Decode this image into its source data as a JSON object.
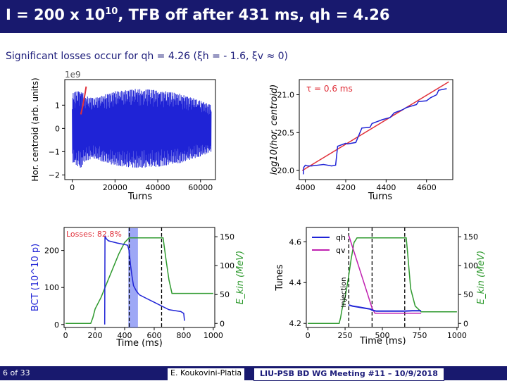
{
  "slide": {
    "title_pre": "I = 200 x 10",
    "title_sup": "10",
    "title_post": ", TFB off after 431 ms, qh = 4.26",
    "subtitle": "Significant losses occur for qh = 4.26 (ξh = - 1.6, ξv ≈ 0)",
    "time_label": "Time (ms)"
  },
  "footer": {
    "page": "6 of 33",
    "author": "E. Koukovini-Platia",
    "meeting": "LIU-PSB BD WG Meeting #11 – 10/9/2018"
  },
  "colors": {
    "blue": "#1f23d6",
    "red": "#e0303a",
    "green": "#2f9a2f",
    "magenta": "#c020b0",
    "band": "#5e6ef0",
    "navy": "#18196e"
  },
  "chart_data": [
    {
      "id": "turns",
      "type": "line",
      "xlabel": "Turns",
      "ylabel": "Hor. centroid (arb. units)",
      "offset_label": "1e9",
      "xlim": [
        -3500,
        67000
      ],
      "ylim": [
        -2.2,
        2.1
      ],
      "xticks": [
        0,
        20000,
        40000,
        60000
      ],
      "xtick_labels": [
        "0",
        "20000",
        "40000",
        "60000"
      ],
      "yticks": [
        -2,
        -1,
        0,
        1
      ],
      "ytick_labels": [
        "−2",
        "−1",
        "0",
        "1"
      ],
      "series": [
        {
          "color": "#1f23d6",
          "envelope": {
            "x": [
              0,
              2000,
              4000,
              6000,
              10000,
              20000,
              30000,
              40000,
              50000,
              60000,
              65000
            ],
            "amp": [
              1.5,
              1.6,
              1.7,
              1.4,
              1.3,
              1.6,
              1.7,
              1.65,
              1.5,
              1.2,
              1.0
            ]
          }
        },
        {
          "color": "#e0303a",
          "x": [
            4000,
            4500,
            5000,
            5500,
            6000,
            6500
          ],
          "y": [
            0.6,
            0.8,
            1.0,
            1.25,
            1.5,
            1.8
          ]
        }
      ]
    },
    {
      "id": "logfit",
      "type": "line",
      "xlabel": "Turns",
      "ylabel": "log10(hor. centroid)",
      "xlim": [
        3970,
        4730
      ],
      "ylim": [
        19.88,
        21.2
      ],
      "xticks": [
        4000,
        4200,
        4400,
        4600
      ],
      "xtick_labels": [
        "4000",
        "4200",
        "4400",
        "4600"
      ],
      "yticks": [
        20.0,
        20.5,
        21.0
      ],
      "ytick_labels": [
        "20.0",
        "20.5",
        "21.0"
      ],
      "annotation": "τ = 0.6 ms",
      "series": [
        {
          "color": "#1f23d6",
          "x": [
            3990,
            3992,
            4000,
            4010,
            4030,
            4060,
            4090,
            4130,
            4150,
            4160,
            4200,
            4210,
            4250,
            4280,
            4320,
            4330,
            4360,
            4380,
            4420,
            4440,
            4480,
            4500,
            4550,
            4560,
            4600,
            4620,
            4650,
            4660,
            4700
          ],
          "y": [
            19.95,
            20.04,
            20.07,
            20.06,
            20.06,
            20.07,
            20.08,
            20.06,
            20.07,
            20.32,
            20.36,
            20.35,
            20.37,
            20.56,
            20.57,
            20.62,
            20.65,
            20.67,
            20.7,
            20.76,
            20.8,
            20.83,
            20.87,
            20.91,
            20.92,
            20.96,
            21.0,
            21.06,
            21.08
          ]
        },
        {
          "color": "#e0303a",
          "x": [
            3985,
            4710
          ],
          "y": [
            20.0,
            21.17
          ]
        }
      ]
    },
    {
      "id": "bct",
      "type": "line",
      "xlabel": "Time (ms)",
      "ylabel": "BCT (10^10 p)",
      "y2label": "E_kin (MeV)",
      "xlim": [
        -10,
        1010
      ],
      "ylim": [
        -8,
        262
      ],
      "y2lim": [
        -7,
        166
      ],
      "xticks": [
        0,
        200,
        400,
        600,
        800,
        1000
      ],
      "xtick_labels": [
        "0",
        "200",
        "400",
        "600",
        "800",
        "1000"
      ],
      "yticks": [
        0,
        100,
        200
      ],
      "ytick_labels": [
        "0",
        "100",
        "200"
      ],
      "y2ticks": [
        0,
        50,
        100,
        150
      ],
      "y2tick_labels": [
        "0",
        "50",
        "100",
        "150"
      ],
      "annotation": "Losses: 82.8%",
      "band": [
        425,
        490
      ],
      "vlines": [
        431,
        650
      ],
      "series": [
        {
          "name": "BCT",
          "color": "#1f23d6",
          "x": [
            265,
            267,
            275,
            290,
            310,
            350,
            400,
            420,
            430,
            440,
            450,
            460,
            480,
            500,
            550,
            600,
            650,
            700,
            780,
            800,
            805
          ],
          "y": [
            0,
            240,
            232,
            226,
            224,
            220,
            216,
            214,
            200,
            160,
            130,
            105,
            90,
            80,
            70,
            60,
            50,
            40,
            35,
            30,
            10
          ]
        },
        {
          "name": "E_kin",
          "color": "#2f9a2f",
          "x": [
            0,
            170,
            185,
            200,
            240,
            280,
            320,
            360,
            400,
            430,
            660,
            680,
            700,
            720,
            1000
          ],
          "y2": [
            0,
            0,
            10,
            25,
            45,
            70,
            95,
            120,
            140,
            148,
            148,
            110,
            75,
            52,
            52
          ]
        }
      ]
    },
    {
      "id": "tunes",
      "type": "line",
      "xlabel": "Time (ms)",
      "ylabel": "Tunes",
      "y2label": "E_kin (MeV)",
      "xlim": [
        -10,
        1010
      ],
      "ylim": [
        4.18,
        4.67
      ],
      "y2lim": [
        -7,
        166
      ],
      "xticks": [
        0,
        250,
        500,
        750,
        1000
      ],
      "xtick_labels": [
        "0",
        "250",
        "500",
        "750",
        "1000"
      ],
      "yticks": [
        4.2,
        4.4,
        4.6
      ],
      "ytick_labels": [
        "4.2",
        "4.4",
        "4.6"
      ],
      "y2ticks": [
        0,
        50,
        100,
        150
      ],
      "y2tick_labels": [
        "0",
        "50",
        "100",
        "150"
      ],
      "vlines": [
        275,
        431,
        650
      ],
      "vlabel": "Injection",
      "legend": "top-left",
      "series": [
        {
          "name": "qh",
          "color": "#1f23d6",
          "x": [
            275,
            300,
            340,
            380,
            420,
            431,
            460,
            500,
            550,
            600,
            650,
            700,
            760
          ],
          "y": [
            4.29,
            4.285,
            4.28,
            4.275,
            4.27,
            4.265,
            4.26,
            4.26,
            4.26,
            4.26,
            4.26,
            4.262,
            4.262
          ]
        },
        {
          "name": "qv",
          "color": "#c020b0",
          "x": [
            275,
            431,
            450,
            500,
            550,
            600,
            650,
            700,
            760
          ],
          "y": [
            4.63,
            4.275,
            4.25,
            4.25,
            4.25,
            4.25,
            4.25,
            4.25,
            4.25
          ]
        },
        {
          "name": "E_kin",
          "color": "#2f9a2f",
          "x": [
            0,
            210,
            220,
            230,
            250,
            270,
            290,
            310,
            330,
            340,
            660,
            670,
            690,
            720,
            760,
            1000
          ],
          "y2": [
            0,
            0,
            10,
            25,
            45,
            75,
            110,
            140,
            148,
            148,
            148,
            120,
            60,
            30,
            20,
            20
          ]
        }
      ]
    }
  ]
}
